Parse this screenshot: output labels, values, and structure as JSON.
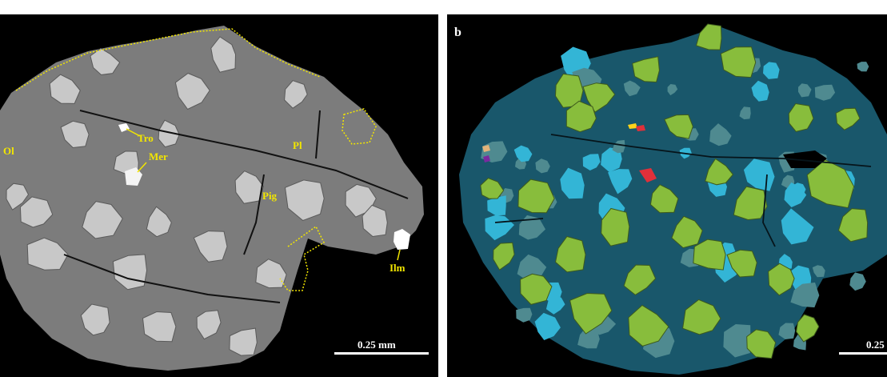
{
  "panel_a": {
    "letter": "",
    "labels": [
      "Tro",
      "Mer",
      "Ol",
      "Pl",
      "Pig",
      "Ilm"
    ],
    "scale_text": "0.25 mm"
  },
  "panel_b": {
    "letter": "b",
    "scale_text": "0.25"
  },
  "colors": {
    "background": "#000000",
    "matrix_gray": "#7c7c7c",
    "grain_light": "#c8c8c8",
    "annotation_yellow": "#f2e600",
    "phase_dark_teal": "#19576b",
    "phase_cyan": "#33b5d6",
    "phase_slate": "#4f8a90",
    "phase_green": "#88bd3c",
    "phase_red": "#e0303a",
    "phase_tan": "#b98c6a",
    "phase_purple": "#7a2aa0"
  }
}
